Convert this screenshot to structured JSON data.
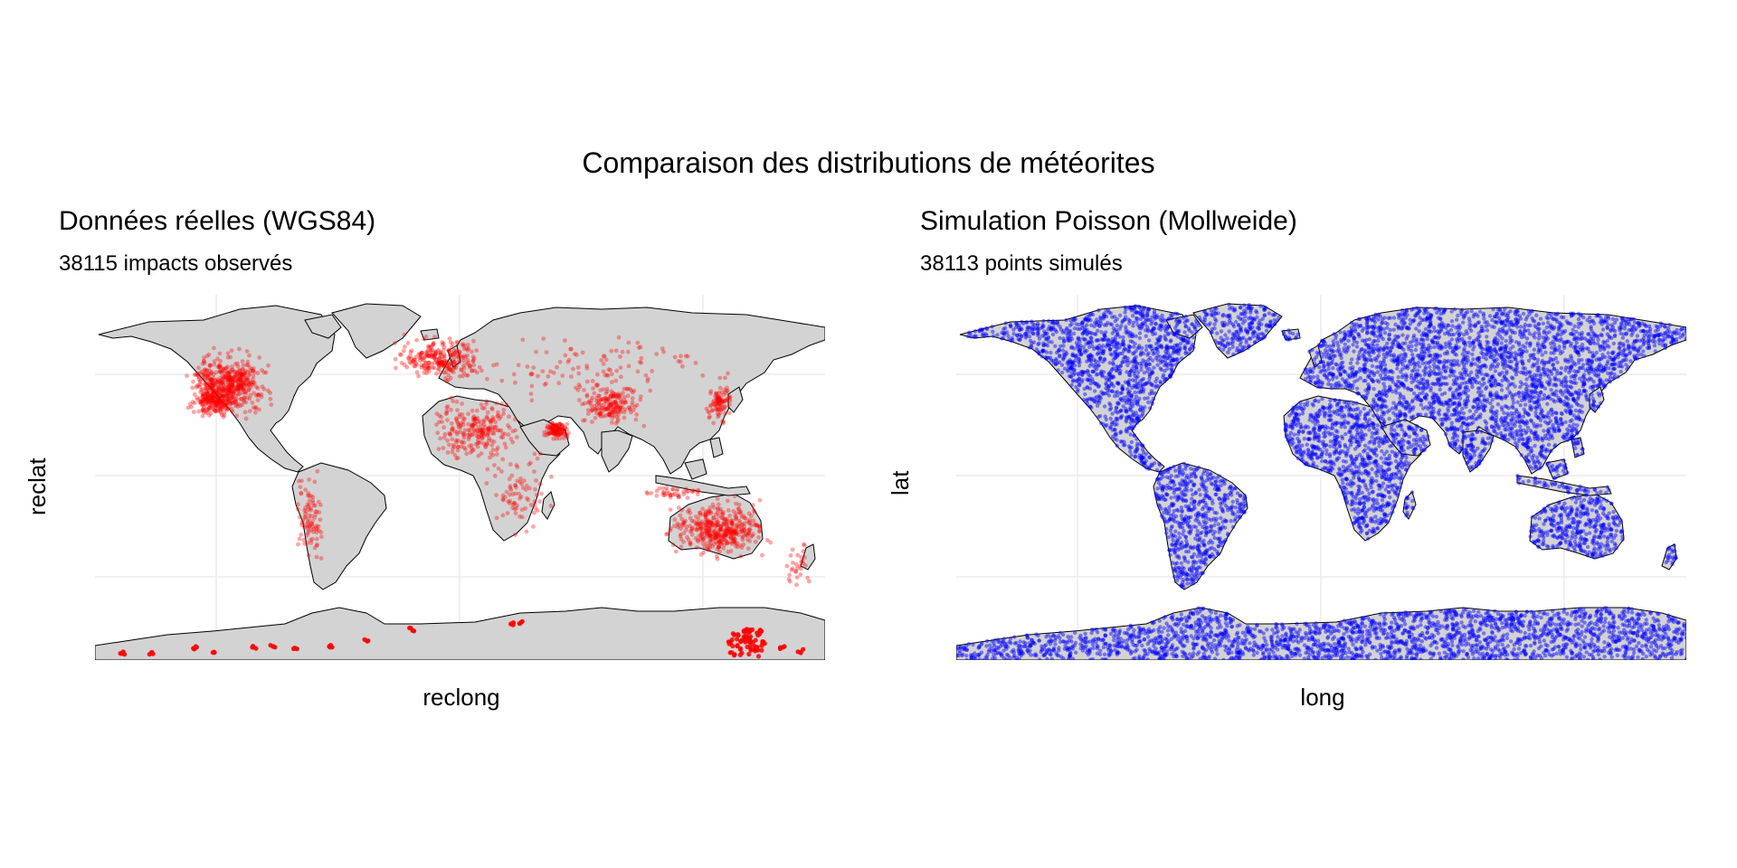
{
  "figure": {
    "title": "Comparaison des distributions de météorites"
  },
  "panels": [
    {
      "title": "Données réelles (WGS84)",
      "subtitle": "38115 impacts observés",
      "xlabel": "reclong",
      "ylabel": "reclat",
      "point_color": "#ff0000"
    },
    {
      "title": "Simulation Poisson (Mollweide)",
      "subtitle": "38113 points simulés",
      "xlabel": "long",
      "ylabel": "lat",
      "point_color": "#0000ff"
    }
  ],
  "colors": {
    "land": "#d3d3d3",
    "border": "#000000",
    "grid": "#ebebeb",
    "observed": "#ff0000",
    "simulated": "#0000ff"
  }
}
